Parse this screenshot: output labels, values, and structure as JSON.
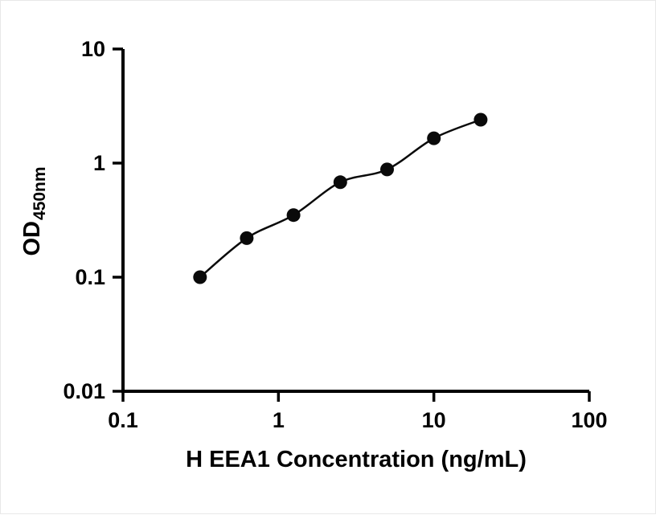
{
  "figure": {
    "ylabel_main": "OD",
    "ylabel_sub": "450nm"
  },
  "chart_data": {
    "type": "scatter",
    "subtype": "log-log standard curve with smooth fit line",
    "title": "",
    "xlabel": "H EEA1 Concentration (ng/mL)",
    "ylabel": "OD450nm",
    "x": [
      0.313,
      0.625,
      1.25,
      2.5,
      5,
      10,
      20
    ],
    "y": [
      0.1,
      0.22,
      0.35,
      0.68,
      0.88,
      1.65,
      2.4
    ],
    "xscale": "log",
    "yscale": "log",
    "xlim": [
      0.1,
      100
    ],
    "ylim": [
      0.01,
      10
    ],
    "xticks": [
      0.1,
      1,
      10,
      100
    ],
    "xtick_labels": [
      "0.1",
      "1",
      "10",
      "100"
    ],
    "yticks": [
      0.01,
      0.1,
      1,
      10
    ],
    "ytick_labels": [
      "0.01",
      "0.1",
      "1",
      "10"
    ],
    "grid": false,
    "legend": null,
    "marker_color": "#0a0a0a",
    "line_color": "#0a0a0a",
    "axis_color": "#000000",
    "background_color": "#ffffff"
  }
}
